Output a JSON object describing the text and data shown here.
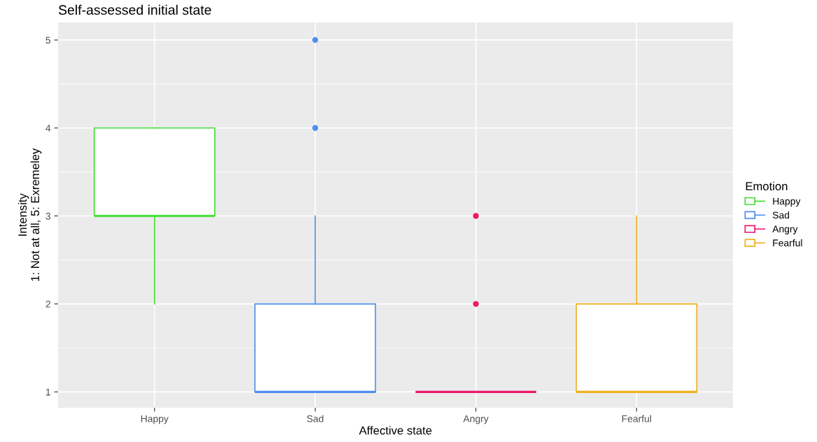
{
  "chart_data": {
    "type": "box",
    "title": "Self-assessed initial state",
    "xlabel": "Affective state",
    "ylabel": "Intensity\n1: Not at all, 5: Exremeley",
    "legend_title": "Emotion",
    "legend": "right",
    "grid": true,
    "categories": [
      "Happy",
      "Sad",
      "Angry",
      "Fearful"
    ],
    "series": [
      {
        "name": "Happy",
        "color": "#44dd33",
        "boxes": [
          {
            "low": 2,
            "q1": 3,
            "median": 3,
            "q3": 4,
            "high": 4
          },
          null,
          null,
          null
        ]
      },
      {
        "name": "Sad",
        "color": "#4d8ef0",
        "boxes": [
          null,
          {
            "low": 1,
            "q1": 1,
            "median": 1,
            "q3": 2,
            "high": 3,
            "outliers": [
              4,
              5
            ]
          },
          null,
          null
        ]
      },
      {
        "name": "Angry",
        "color": "#ee1a6c",
        "boxes": [
          null,
          null,
          {
            "low": 1,
            "q1": 1,
            "median": 1,
            "q3": 1,
            "high": 1,
            "outliers": [
              2,
              3
            ]
          },
          null
        ]
      },
      {
        "name": "Fearful",
        "color": "#f0b020",
        "boxes": [
          null,
          null,
          null,
          {
            "low": 1,
            "q1": 1,
            "median": 1,
            "q3": 2,
            "high": 3
          }
        ]
      }
    ],
    "ylim": [
      0.82,
      5.2
    ],
    "yticks": [
      1,
      2,
      3,
      4,
      5
    ]
  }
}
